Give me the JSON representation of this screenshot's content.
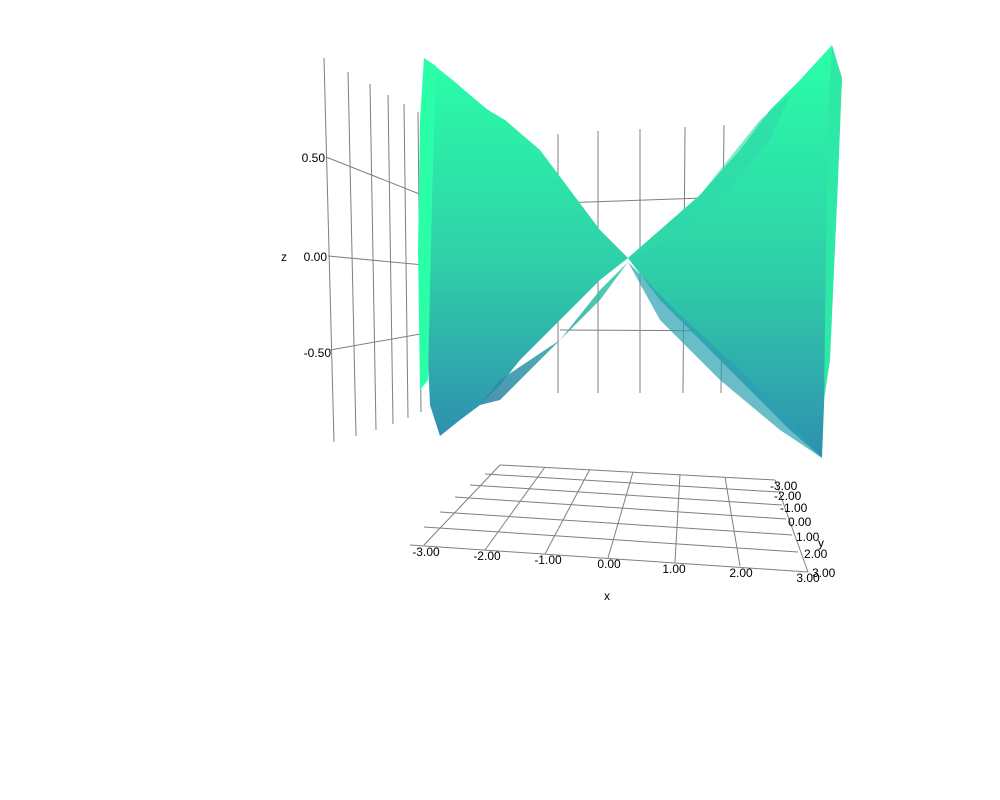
{
  "chart_data": {
    "type": "surface",
    "title": "",
    "x_axis": {
      "label": "x",
      "ticks": [
        "-3.00",
        "-2.00",
        "-1.00",
        "0.00",
        "1.00",
        "2.00",
        "3.00"
      ],
      "range": [
        -3,
        3
      ]
    },
    "y_axis": {
      "label": "y",
      "ticks": [
        "-3.00",
        "-2.00",
        "-1.00",
        "0.00",
        "1.00",
        "2.00",
        "3.00"
      ],
      "range": [
        -3,
        3
      ]
    },
    "z_axis": {
      "label": "z",
      "ticks": [
        "0.50",
        "0.00",
        "-0.50"
      ],
      "range": [
        -1,
        1
      ]
    },
    "surface": {
      "description_values": "saddle / hyperbolic surface z ≈ x·y / |…| spanning approximately -1 to 1",
      "colorscale": [
        "#2f8fb0",
        "#2fcfa8",
        "#2affa8"
      ],
      "z_min": -1.0,
      "z_max": 1.0
    },
    "grid": true,
    "legend": "none"
  }
}
